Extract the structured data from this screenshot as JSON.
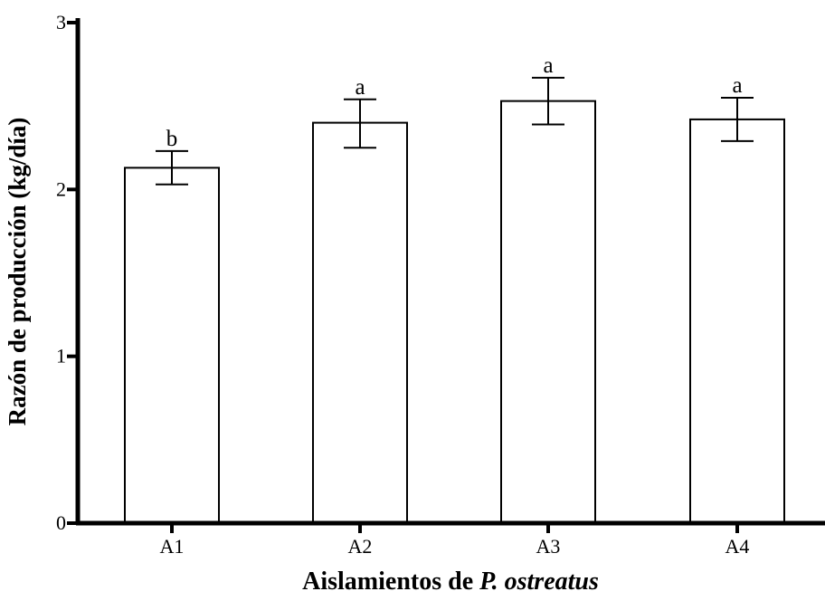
{
  "chart_data": {
    "type": "bar",
    "categories": [
      "A1",
      "A2",
      "A3",
      "A4"
    ],
    "values": [
      2.13,
      2.4,
      2.53,
      2.42
    ],
    "error_low": [
      2.03,
      2.25,
      2.39,
      2.29
    ],
    "error_high": [
      2.23,
      2.54,
      2.67,
      2.55
    ],
    "significance_labels": [
      "b",
      "a",
      "a",
      "a"
    ],
    "ylabel": "Razón de producción (kg/día)",
    "xlabel_prefix": "Aislamientos de ",
    "xlabel_italic": "P. ostreatus",
    "ylim": [
      0,
      3
    ],
    "yticks": [
      0,
      1,
      2,
      3
    ],
    "bar_fill": "#ffffff",
    "bar_stroke": "#000000",
    "grid": false
  }
}
